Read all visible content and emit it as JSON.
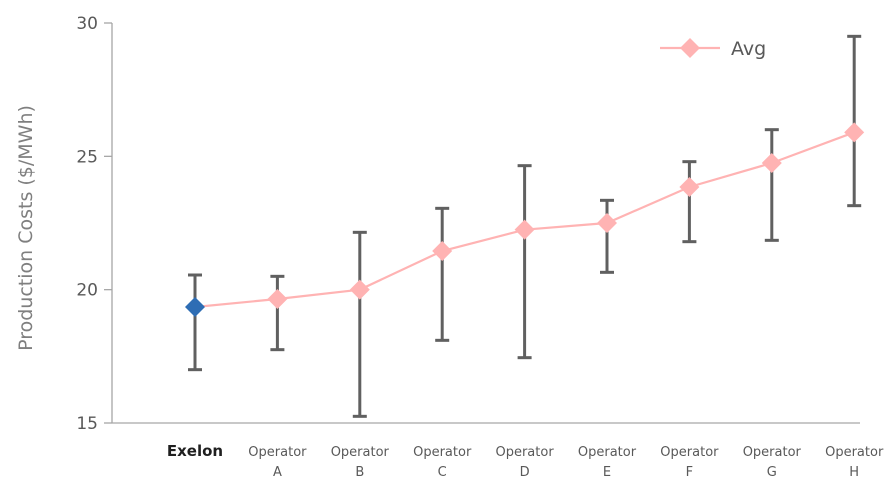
{
  "chart_data": {
    "type": "line",
    "ylabel": "Production Costs ($/MWh)",
    "ylim": [
      15,
      30
    ],
    "yticks": [
      15,
      20,
      25,
      30
    ],
    "categories": [
      [
        "Exelon"
      ],
      [
        "Operator",
        "A"
      ],
      [
        "Operator",
        "B"
      ],
      [
        "Operator",
        "C"
      ],
      [
        "Operator",
        "D"
      ],
      [
        "Operator",
        "E"
      ],
      [
        "Operator",
        "F"
      ],
      [
        "Operator",
        "G"
      ],
      [
        "Operator",
        "H"
      ]
    ],
    "highlight_category": "Exelon",
    "series": [
      {
        "name": "Avg",
        "values": [
          19.35,
          19.65,
          20.0,
          21.45,
          22.25,
          22.5,
          23.85,
          24.75,
          25.9
        ],
        "low": [
          17.0,
          17.75,
          15.25,
          18.1,
          17.45,
          20.65,
          21.8,
          21.85,
          23.15
        ],
        "high": [
          20.55,
          20.5,
          22.15,
          23.05,
          24.65,
          23.35,
          24.8,
          26.0,
          29.5
        ]
      }
    ],
    "legend_position": "top-right",
    "colors": {
      "avg": "#ffb3b3",
      "highlight": "#2e6db4",
      "errorbar": "#606060",
      "axis": "#a6a6a6"
    }
  }
}
